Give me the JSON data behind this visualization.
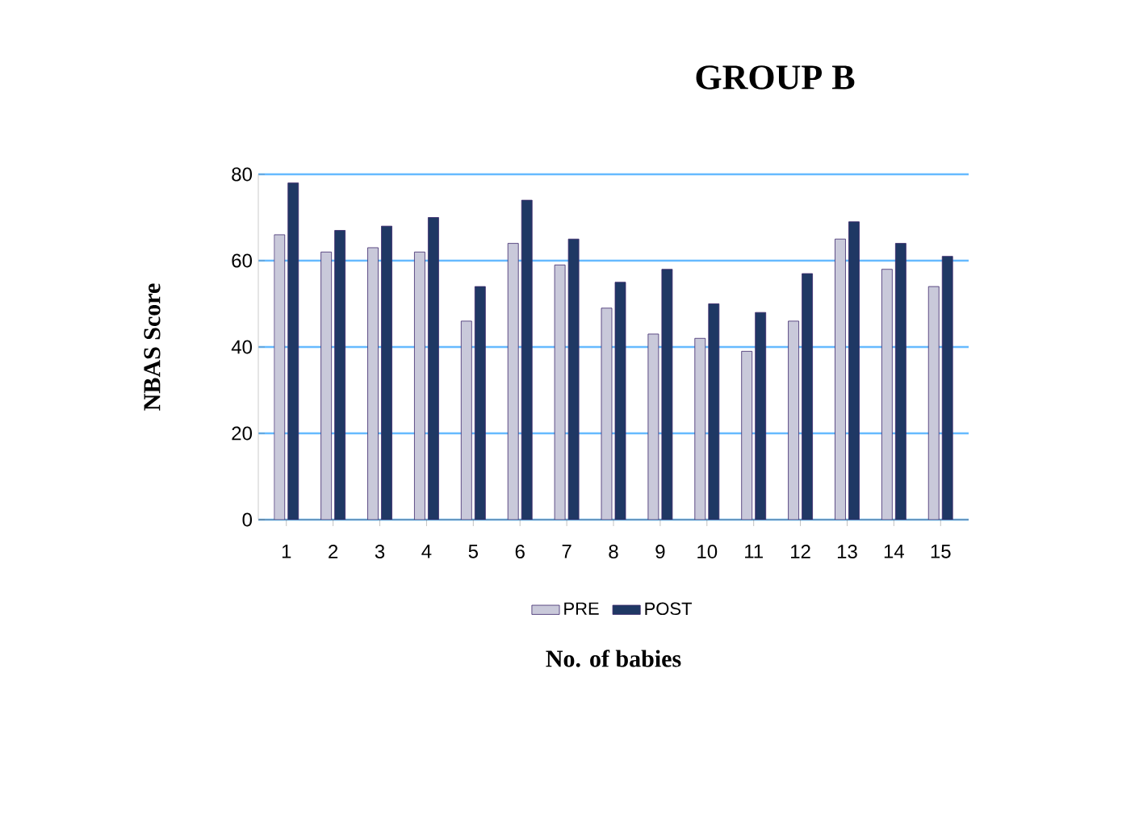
{
  "chart_data": {
    "type": "bar",
    "title": "GROUP B",
    "xlabel": "No. of babies",
    "ylabel": "NBAS Score",
    "categories": [
      "1",
      "2",
      "3",
      "4",
      "5",
      "6",
      "7",
      "8",
      "9",
      "10",
      "11",
      "12",
      "13",
      "14",
      "15"
    ],
    "series": [
      {
        "name": "PRE",
        "color": "#c9c9da",
        "values": [
          66,
          62,
          63,
          62,
          46,
          64,
          59,
          49,
          43,
          42,
          39,
          46,
          65,
          58,
          54
        ]
      },
      {
        "name": "POST",
        "color": "#1f3864",
        "values": [
          78,
          67,
          68,
          70,
          54,
          74,
          65,
          55,
          58,
          50,
          48,
          57,
          69,
          64,
          61
        ]
      }
    ],
    "ylim": [
      0,
      80
    ],
    "yticks": [
      0,
      20,
      40,
      60,
      80
    ],
    "grid": "y",
    "legend": "bottom"
  }
}
